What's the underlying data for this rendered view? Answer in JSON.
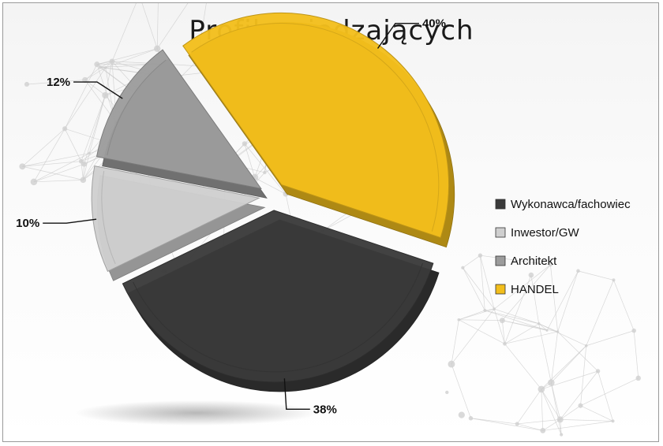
{
  "chart_data": {
    "type": "pie",
    "title": "Profil zwiedzających",
    "legend_position": "right",
    "slices": [
      {
        "name": "HANDEL",
        "value": 40,
        "label": "40%",
        "color": "#f2be1c"
      },
      {
        "name": "Wykonawca/fachowiec",
        "value": 38,
        "label": "38%",
        "color": "#3a3a3a"
      },
      {
        "name": "Inwestor/GW",
        "value": 10,
        "label": "10%",
        "color": "#cfcfcf"
      },
      {
        "name": "Architekt",
        "value": 12,
        "label": "12%",
        "color": "#9c9c9c"
      }
    ],
    "legend": [
      {
        "name": "Wykonawca/fachowiec",
        "color": "#3a3a3a"
      },
      {
        "name": "Inwestor/GW",
        "color": "#cfcfcf"
      },
      {
        "name": "Architekt",
        "color": "#9c9c9c"
      },
      {
        "name": "HANDEL",
        "color": "#f2be1c"
      }
    ]
  }
}
